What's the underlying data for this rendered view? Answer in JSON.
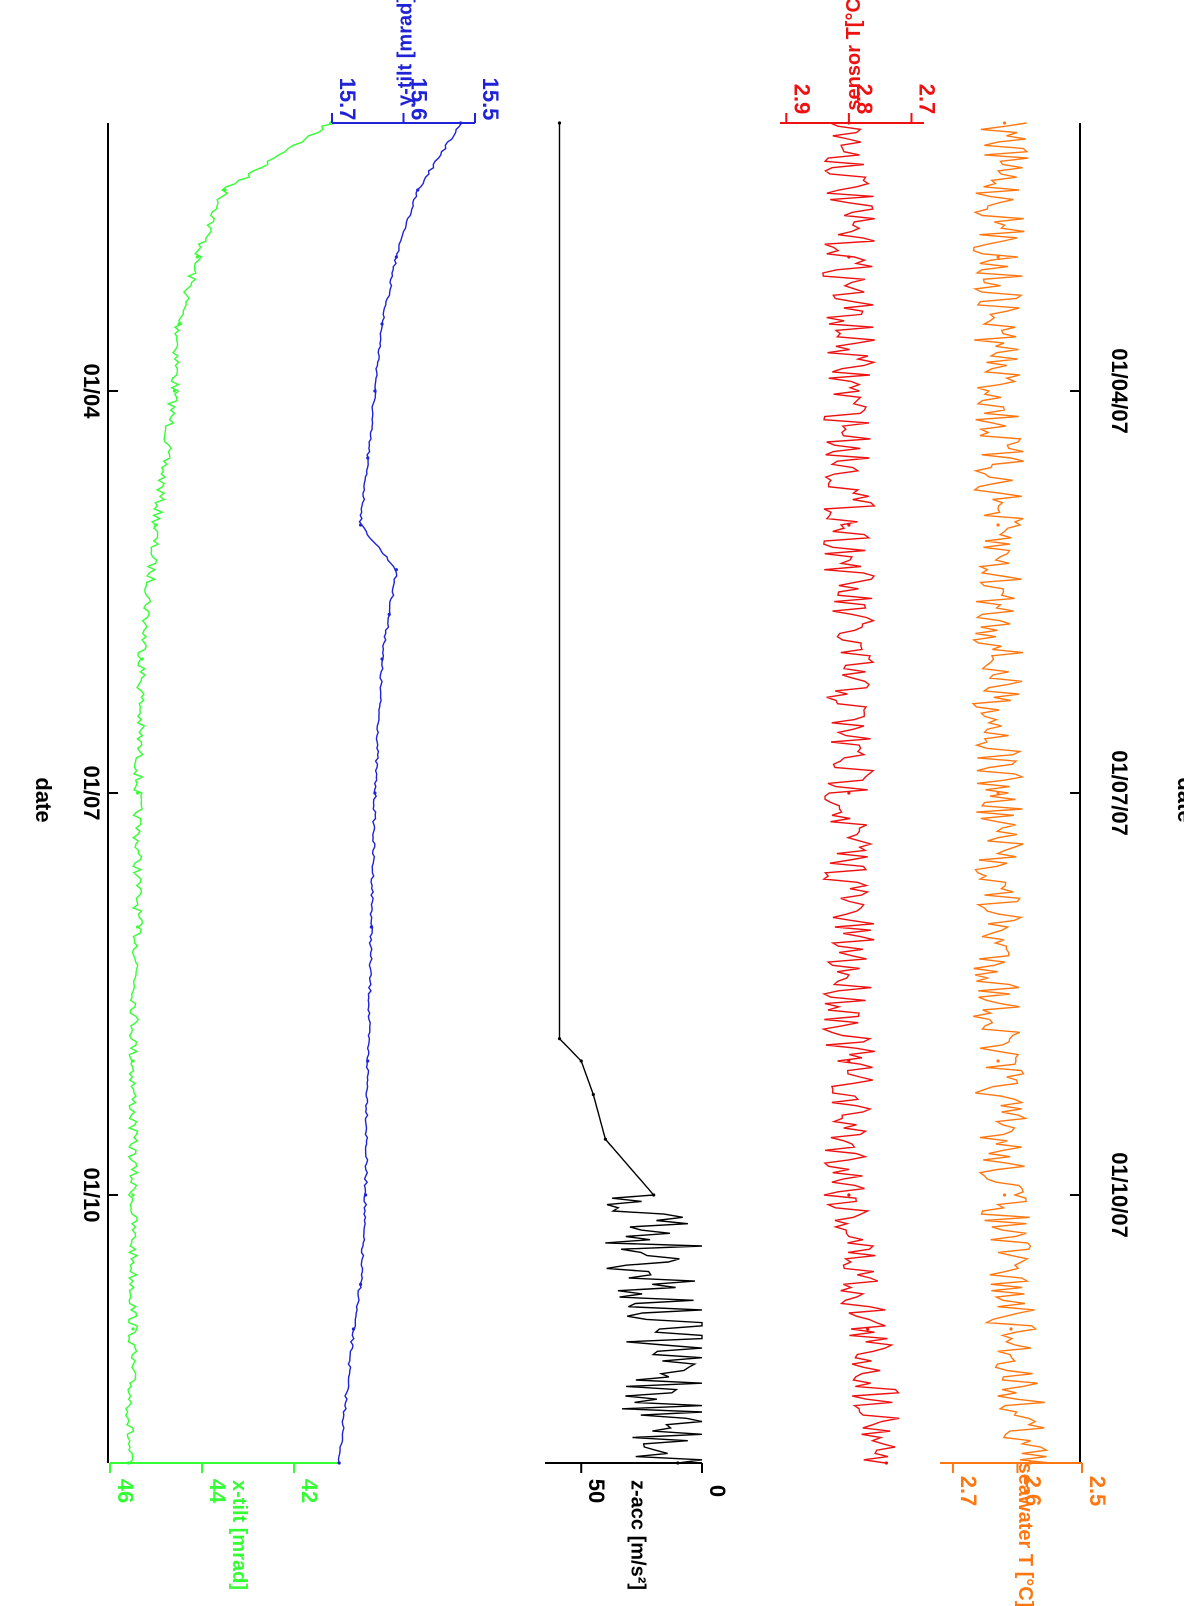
{
  "title": "",
  "top_xlabel": "date",
  "bottom_xlabel": "date",
  "colors": {
    "green": "#33ff33",
    "blue": "#1f22d6",
    "black": "#000000",
    "red": "#ee1111",
    "orange": "#ff7711"
  },
  "chart_data": {
    "type": "line",
    "orientation": "rotated-90-clockwise",
    "x_unit": "date",
    "x_range": [
      "2007-01-02",
      "2007-01-12"
    ],
    "top_axis_ticks": [
      "01/04",
      "01/07",
      "01/10"
    ],
    "bottom_axis_ticks": [
      "01/04/07",
      "01/07/07",
      "01/10/07"
    ],
    "series": [
      {
        "key": "xtilt",
        "name": "x-tilt [mrad]",
        "color": "#33ff33",
        "ylim": [
          41,
          46
        ],
        "yticks": [
          "42",
          "44",
          "46"
        ],
        "x": [
          "2007-01-02",
          "2007-01-02T12:00",
          "2007-01-03",
          "2007-01-03T12:00",
          "2007-01-04",
          "2007-01-05",
          "2007-01-06",
          "2007-01-07",
          "2007-01-08",
          "2007-01-09",
          "2007-01-10",
          "2007-01-11",
          "2007-01-12"
        ],
        "values": [
          41.2,
          43.5,
          44.1,
          44.5,
          44.6,
          45.0,
          45.3,
          45.4,
          45.4,
          45.5,
          45.5,
          45.5,
          45.6
        ]
      },
      {
        "key": "ytilt",
        "name": "y-tilt [mrad]",
        "color": "#1f22d6",
        "ylim": [
          15.5,
          15.7
        ],
        "yticks": [
          "15.7",
          "15.6",
          "15.5"
        ],
        "x": [
          "2007-01-02",
          "2007-01-02T12:00",
          "2007-01-03",
          "2007-01-03T12:00",
          "2007-01-04",
          "2007-01-04T12:00",
          "2007-01-05",
          "2007-01-05T08:00",
          "2007-01-05T16:00",
          "2007-01-06",
          "2007-01-07",
          "2007-01-08",
          "2007-01-09",
          "2007-01-10",
          "2007-01-10T16:00",
          "2007-01-11",
          "2007-01-12"
        ],
        "values": [
          15.52,
          15.58,
          15.61,
          15.63,
          15.64,
          15.65,
          15.66,
          15.61,
          15.62,
          15.63,
          15.64,
          15.645,
          15.65,
          15.653,
          15.66,
          15.67,
          15.69
        ]
      },
      {
        "key": "zacc",
        "name": "z-acc [m/s²]",
        "color": "#000000",
        "ylim": [
          0,
          65
        ],
        "yticks": [
          "50",
          "0"
        ],
        "x": [
          "2007-01-02",
          "2007-01-08T20:00",
          "2007-01-09",
          "2007-01-09T06:00",
          "2007-01-09T14:00",
          "2007-01-10",
          "2007-01-12"
        ],
        "values": [
          59,
          59,
          50,
          45,
          40,
          20,
          10
        ]
      },
      {
        "key": "sensorT",
        "name": "sensor T[°C]",
        "color": "#ee1111",
        "ylim": [
          2.68,
          2.91
        ],
        "yticks": [
          "2.9",
          "2.8",
          "2.7"
        ],
        "x": [
          "2007-01-02",
          "2007-01-03",
          "2007-01-05",
          "2007-01-07",
          "2007-01-09",
          "2007-01-10",
          "2007-01-11",
          "2007-01-12"
        ],
        "values": [
          2.8,
          2.8,
          2.8,
          2.8,
          2.8,
          2.8,
          2.77,
          2.74
        ]
      },
      {
        "key": "seaT",
        "name": "seawater T [°C]",
        "color": "#ff7711",
        "ylim": [
          2.5,
          2.72
        ],
        "yticks": [
          "2.7",
          "2.6",
          "2.5"
        ],
        "x": [
          "2007-01-02",
          "2007-01-03",
          "2007-01-05",
          "2007-01-07",
          "2007-01-09",
          "2007-01-10",
          "2007-01-11",
          "2007-01-12"
        ],
        "values": [
          2.62,
          2.63,
          2.63,
          2.63,
          2.63,
          2.62,
          2.61,
          2.58
        ]
      }
    ]
  }
}
